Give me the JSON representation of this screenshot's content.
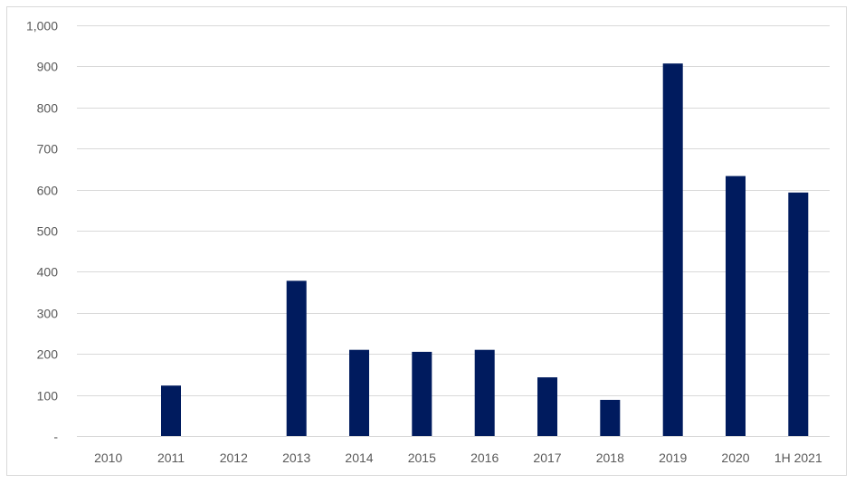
{
  "chart_data": {
    "type": "bar",
    "title": "",
    "xlabel": "",
    "ylabel": "",
    "categories": [
      "2010",
      "2011",
      "2012",
      "2013",
      "2014",
      "2015",
      "2016",
      "2017",
      "2018",
      "2019",
      "2020",
      "1H 2021"
    ],
    "values": [
      0,
      123,
      0,
      378,
      210,
      205,
      210,
      143,
      88,
      907,
      633,
      593
    ],
    "ylim": [
      0,
      1000
    ],
    "yticks": [
      {
        "value": 0,
        "label": "-"
      },
      {
        "value": 100,
        "label": "100"
      },
      {
        "value": 200,
        "label": "200"
      },
      {
        "value": 300,
        "label": "300"
      },
      {
        "value": 400,
        "label": "400"
      },
      {
        "value": 500,
        "label": "500"
      },
      {
        "value": 600,
        "label": "600"
      },
      {
        "value": 700,
        "label": "700"
      },
      {
        "value": 800,
        "label": "800"
      },
      {
        "value": 900,
        "label": "900"
      },
      {
        "value": 1000,
        "label": "1,000"
      }
    ],
    "grid": true,
    "legend": "none",
    "bar_color": "#001B5E",
    "grid_color": "#D9D9D9",
    "text_color": "#595959"
  }
}
